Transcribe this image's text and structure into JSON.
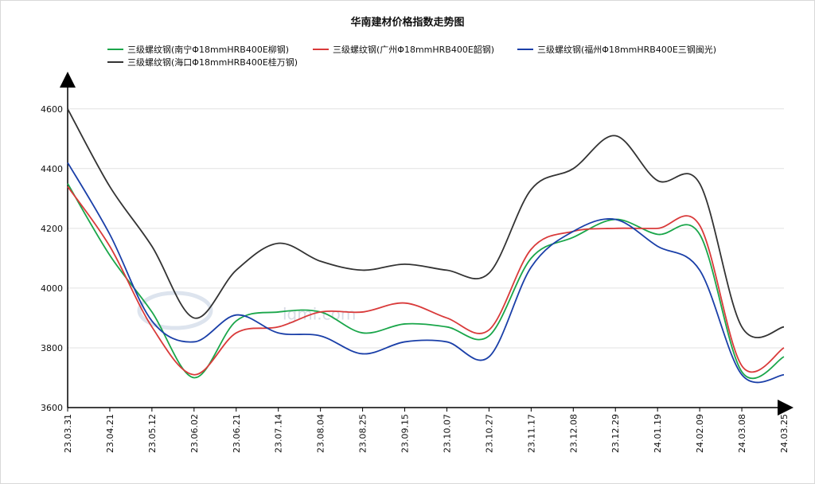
{
  "chart_data": {
    "type": "line",
    "title": "华南建材价格指数走势图",
    "categories": [
      "23.03.31",
      "23.04.21",
      "23.05.12",
      "23.06.02",
      "23.06.21",
      "23.07.14",
      "23.08.04",
      "23.08.25",
      "23.09.15",
      "23.10.07",
      "23.10.27",
      "23.11.17",
      "23.12.08",
      "23.12.29",
      "24.01.19",
      "24.02.09",
      "24.03.08",
      "24.03.25"
    ],
    "ylim": [
      3600,
      4650
    ],
    "yticks": [
      3600,
      3800,
      4000,
      4200,
      4400,
      4600
    ],
    "grid": true,
    "legend_position": "top",
    "watermark": "lgmi.com",
    "series": [
      {
        "name": "三级螺纹钢(南宁Φ18mmHRB400E柳钢)",
        "color": "#1aa64a",
        "values": [
          4350,
          4110,
          3920,
          3700,
          3890,
          3920,
          3920,
          3850,
          3880,
          3870,
          3840,
          4100,
          4170,
          4230,
          4180,
          4180,
          3720,
          3770
        ]
      },
      {
        "name": "三级螺纹钢(广州Φ18mmHRB400E韶钢)",
        "color": "#d93a3a",
        "values": [
          4340,
          4140,
          3870,
          3710,
          3850,
          3870,
          3920,
          3920,
          3950,
          3900,
          3860,
          4130,
          4190,
          4200,
          4200,
          4210,
          3740,
          3800
        ]
      },
      {
        "name": "三级螺纹钢(福州Φ18mmHRB400E三钢闽光)",
        "color": "#1a3fa8",
        "values": [
          4420,
          4180,
          3890,
          3820,
          3910,
          3850,
          3840,
          3780,
          3820,
          3820,
          3770,
          4070,
          4190,
          4230,
          4140,
          4060,
          3710,
          3710
        ]
      },
      {
        "name": "三级螺纹钢(海口Φ18mmHRB400E桂万钢)",
        "color": "#333333",
        "values": [
          4600,
          4340,
          4140,
          3900,
          4060,
          4150,
          4090,
          4060,
          4080,
          4060,
          4050,
          4330,
          4400,
          4510,
          4360,
          4350,
          3870,
          3870
        ]
      }
    ]
  }
}
